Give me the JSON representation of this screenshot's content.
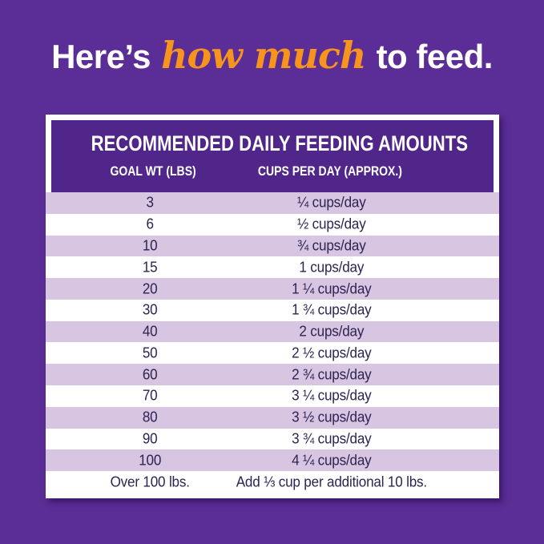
{
  "title": {
    "prefix": "Here’s ",
    "highlight": "how much",
    "suffix": " to feed."
  },
  "table": {
    "title": "RECOMMENDED DAILY FEEDING AMOUNTS",
    "columns": [
      "GOAL WT (LBS)",
      "CUPS PER DAY (APPROX.)"
    ],
    "rows": [
      {
        "goal_wt": "3",
        "cups": "¼ cups/day"
      },
      {
        "goal_wt": "6",
        "cups": "½ cups/day"
      },
      {
        "goal_wt": "10",
        "cups": "¾ cups/day"
      },
      {
        "goal_wt": "15",
        "cups": "1 cups/day"
      },
      {
        "goal_wt": "20",
        "cups": "1 ¼ cups/day"
      },
      {
        "goal_wt": "30",
        "cups": "1 ¾ cups/day"
      },
      {
        "goal_wt": "40",
        "cups": "2 cups/day"
      },
      {
        "goal_wt": "50",
        "cups": "2 ½ cups/day"
      },
      {
        "goal_wt": "60",
        "cups": "2 ¾ cups/day"
      },
      {
        "goal_wt": "70",
        "cups": "3 ¼ cups/day"
      },
      {
        "goal_wt": "80",
        "cups": "3 ½ cups/day"
      },
      {
        "goal_wt": "90",
        "cups": "3 ¾ cups/day"
      },
      {
        "goal_wt": "100",
        "cups": "4 ¼ cups/day"
      },
      {
        "goal_wt": "Over 100 lbs.",
        "cups": "Add ⅓ cup per additional 10 lbs."
      }
    ]
  },
  "chart_data": {
    "type": "table",
    "title": "RECOMMENDED DAILY FEEDING AMOUNTS",
    "categories": [
      3,
      6,
      10,
      15,
      20,
      30,
      40,
      50,
      60,
      70,
      80,
      90,
      100
    ],
    "values": [
      0.25,
      0.5,
      0.75,
      1,
      1.25,
      1.75,
      2,
      2.5,
      2.75,
      3.25,
      3.5,
      3.75,
      4.25
    ],
    "xlabel": "GOAL WT (LBS)",
    "ylabel": "CUPS PER DAY (APPROX.)",
    "footnote": "Over 100 lbs.: Add 1/3 cup per additional 10 lbs."
  },
  "colors": {
    "background": "#5B2D96",
    "header_block": "#50268A",
    "row_alt": "#D7C5E2",
    "row_text": "#2D2452",
    "accent_orange": "#F7941E",
    "card_white": "#FFFFFF"
  }
}
